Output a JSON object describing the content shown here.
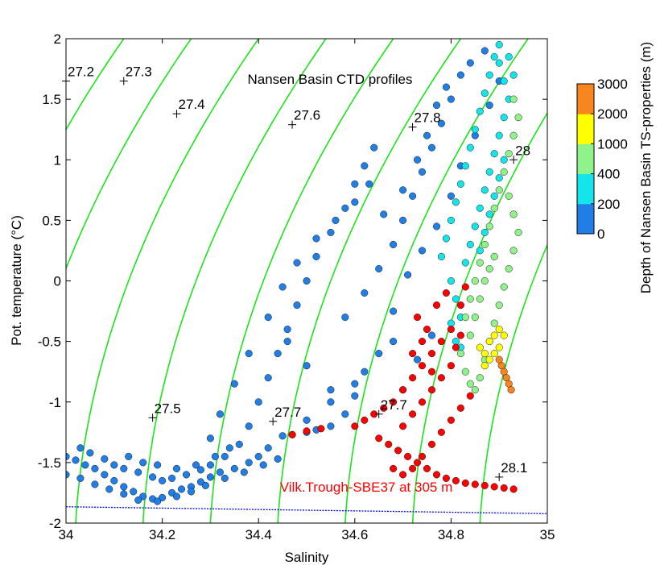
{
  "chart_data": {
    "type": "scatter",
    "title": "Nansen Basin CTD profiles",
    "xlabel": "Salinity",
    "ylabel": "Pot. temperature (°C)",
    "xlim": [
      34,
      35
    ],
    "ylim": [
      -2,
      2
    ],
    "x_ticks": [
      "34",
      "34.2",
      "34.4",
      "34.6",
      "34.8",
      "35"
    ],
    "y_ticks": [
      "-2",
      "-1.5",
      "-1",
      "-0.5",
      "0",
      "0.5",
      "1",
      "1.5",
      "2"
    ],
    "grid": false,
    "colorbar": {
      "label": "Depth of Nansen Basin TS-properties (m)",
      "ticks": [
        "0",
        "200",
        "400",
        "1000",
        "2000",
        "3000"
      ],
      "colors": [
        "#1f7fe6",
        "#13e5ea",
        "#8ff28a",
        "#ffff00",
        "#f7861f"
      ]
    },
    "isopycnals": {
      "color": "#19e619",
      "labels": [
        {
          "text": "27.2",
          "x": 34.0,
          "y": 1.65
        },
        {
          "text": "27.3",
          "x": 34.12,
          "y": 1.65
        },
        {
          "text": "27.4",
          "x": 34.23,
          "y": 1.38
        },
        {
          "text": "27.5",
          "x": 34.18,
          "y": -1.13
        },
        {
          "text": "27.6",
          "x": 34.47,
          "y": 1.29
        },
        {
          "text": "27.7",
          "x": 34.43,
          "y": -1.16
        },
        {
          "text": "27.7",
          "x": 34.65,
          "y": -1.1
        },
        {
          "text": "27.8",
          "x": 34.72,
          "y": 1.27
        },
        {
          "text": "28",
          "x": 34.93,
          "y": 1.0
        },
        {
          "text": "28.1",
          "x": 34.9,
          "y": -1.62
        }
      ]
    },
    "freezing_line": {
      "color": "#0000ff",
      "x": [
        34,
        35
      ],
      "y": [
        -1.865,
        -1.922
      ]
    },
    "annotation": {
      "text": "Vilk.Trough-SBE37 at 305 m",
      "color": "#ff0000",
      "x": 34.8,
      "y": -1.76
    },
    "series": [
      {
        "depth_class": "0-200",
        "color": "#1f7fe6",
        "points": [
          [
            34.0,
            -1.45
          ],
          [
            34.02,
            -1.48
          ],
          [
            34.04,
            -1.52
          ],
          [
            34.06,
            -1.55
          ],
          [
            34.08,
            -1.6
          ],
          [
            34.1,
            -1.65
          ],
          [
            34.12,
            -1.7
          ],
          [
            34.14,
            -1.74
          ],
          [
            34.16,
            -1.78
          ],
          [
            34.18,
            -1.8
          ],
          [
            34.2,
            -1.79
          ],
          [
            34.22,
            -1.75
          ],
          [
            34.24,
            -1.72
          ],
          [
            34.26,
            -1.7
          ],
          [
            34.28,
            -1.66
          ],
          [
            34.3,
            -1.62
          ],
          [
            34.32,
            -1.58
          ],
          [
            34.35,
            -1.55
          ],
          [
            34.38,
            -1.5
          ],
          [
            34.4,
            -1.45
          ],
          [
            34.42,
            -1.38
          ],
          [
            34.45,
            -1.28
          ],
          [
            34.5,
            -1.15
          ],
          [
            34.55,
            -1.0
          ],
          [
            34.6,
            -0.85
          ],
          [
            34.03,
            -1.38
          ],
          [
            34.05,
            -1.42
          ],
          [
            34.08,
            -1.47
          ],
          [
            34.1,
            -1.52
          ],
          [
            34.12,
            -1.55
          ],
          [
            34.15,
            -1.58
          ],
          [
            34.18,
            -1.62
          ],
          [
            34.2,
            -1.65
          ],
          [
            34.22,
            -1.63
          ],
          [
            34.25,
            -1.6
          ],
          [
            34.28,
            -1.56
          ],
          [
            34.3,
            -1.52
          ],
          [
            34.33,
            -1.45
          ],
          [
            34.36,
            -1.35
          ],
          [
            34.38,
            -1.2
          ],
          [
            34.4,
            -1.0
          ],
          [
            34.42,
            -0.8
          ],
          [
            34.44,
            -0.6
          ],
          [
            34.46,
            -0.4
          ],
          [
            34.48,
            -0.2
          ],
          [
            34.5,
            0.0
          ],
          [
            34.52,
            0.2
          ],
          [
            34.55,
            0.4
          ],
          [
            34.58,
            0.6
          ],
          [
            34.6,
            0.8
          ],
          [
            34.62,
            0.95
          ],
          [
            34.64,
            1.1
          ],
          [
            34.3,
            -1.3
          ],
          [
            34.32,
            -1.1
          ],
          [
            34.35,
            -0.85
          ],
          [
            34.38,
            -0.6
          ],
          [
            34.42,
            -0.3
          ],
          [
            34.45,
            -0.05
          ],
          [
            34.48,
            0.15
          ],
          [
            34.52,
            0.35
          ],
          [
            34.56,
            0.5
          ],
          [
            34.6,
            0.65
          ],
          [
            34.63,
            0.8
          ],
          [
            34.46,
            -0.5
          ],
          [
            34.5,
            -0.7
          ],
          [
            34.55,
            -0.9
          ],
          [
            34.58,
            -0.3
          ],
          [
            34.62,
            -0.1
          ],
          [
            34.65,
            0.1
          ],
          [
            34.68,
            0.3
          ],
          [
            34.7,
            0.5
          ],
          [
            34.72,
            0.7
          ],
          [
            34.74,
            0.9
          ],
          [
            34.76,
            1.1
          ],
          [
            34.78,
            1.3
          ],
          [
            34.8,
            1.5
          ],
          [
            34.82,
            1.7
          ],
          [
            34.84,
            1.8
          ],
          [
            34.87,
            1.9
          ],
          [
            34.66,
            0.55
          ],
          [
            34.7,
            0.75
          ],
          [
            34.73,
            1.0
          ],
          [
            34.75,
            1.2
          ],
          [
            34.77,
            1.45
          ],
          [
            34.79,
            1.6
          ],
          [
            34.47,
            -1.27
          ],
          [
            34.5,
            -1.25
          ],
          [
            34.52,
            -1.23
          ],
          [
            34.55,
            -1.2
          ],
          [
            34.58,
            -1.1
          ],
          [
            34.6,
            -0.95
          ],
          [
            34.62,
            -0.75
          ],
          [
            34.65,
            -0.6
          ],
          [
            34.68,
            -0.5
          ],
          [
            34.13,
            -1.45
          ],
          [
            34.16,
            -1.5
          ],
          [
            34.19,
            -1.52
          ],
          [
            34.23,
            -1.55
          ],
          [
            34.27,
            -1.52
          ],
          [
            34.31,
            -1.45
          ],
          [
            34.34,
            -1.38
          ],
          [
            34.0,
            -1.6
          ],
          [
            34.03,
            -1.63
          ],
          [
            34.06,
            -1.68
          ],
          [
            34.09,
            -1.72
          ],
          [
            34.12,
            -1.76
          ],
          [
            34.15,
            -1.81
          ],
          [
            34.19,
            -1.82
          ],
          [
            34.23,
            -1.78
          ],
          [
            34.26,
            -1.74
          ],
          [
            34.29,
            -1.69
          ],
          [
            34.33,
            -1.63
          ],
          [
            34.37,
            -1.58
          ],
          [
            34.41,
            -1.52
          ],
          [
            34.44,
            -1.47
          ],
          [
            34.7,
            -0.9
          ],
          [
            34.73,
            -0.65
          ],
          [
            34.76,
            -0.45
          ],
          [
            34.68,
            -0.25
          ],
          [
            34.71,
            0.05
          ],
          [
            34.74,
            0.25
          ],
          [
            34.77,
            0.45
          ],
          [
            34.8,
            0.7
          ],
          [
            34.82,
            0.95
          ],
          [
            34.85,
            1.2
          ],
          [
            34.88,
            1.45
          ],
          [
            34.9,
            1.65
          ]
        ]
      },
      {
        "depth_class": "200-400",
        "color": "#13e5ea",
        "points": [
          [
            34.78,
            0.2
          ],
          [
            34.79,
            0.35
          ],
          [
            34.8,
            0.5
          ],
          [
            34.81,
            0.65
          ],
          [
            34.82,
            0.8
          ],
          [
            34.83,
            0.95
          ],
          [
            34.84,
            1.1
          ],
          [
            34.85,
            1.25
          ],
          [
            34.86,
            1.4
          ],
          [
            34.87,
            1.55
          ],
          [
            34.88,
            1.7
          ],
          [
            34.89,
            1.85
          ],
          [
            34.9,
            1.95
          ],
          [
            34.92,
            1.85
          ],
          [
            34.93,
            1.7
          ],
          [
            34.8,
            0.0
          ],
          [
            34.81,
            -0.15
          ],
          [
            34.82,
            -0.3
          ],
          [
            34.83,
            0.15
          ],
          [
            34.84,
            0.3
          ],
          [
            34.85,
            0.45
          ],
          [
            34.86,
            0.6
          ],
          [
            34.87,
            0.75
          ],
          [
            34.88,
            0.9
          ],
          [
            34.89,
            1.05
          ],
          [
            34.9,
            1.2
          ],
          [
            34.91,
            1.35
          ],
          [
            34.92,
            1.5
          ],
          [
            34.91,
            1.65
          ],
          [
            34.9,
            1.8
          ],
          [
            34.8,
            -0.35
          ],
          [
            34.81,
            -0.5
          ],
          [
            34.82,
            -0.55
          ],
          [
            34.86,
            0.25
          ],
          [
            34.87,
            0.4
          ],
          [
            34.88,
            0.55
          ],
          [
            34.89,
            0.7
          ],
          [
            34.9,
            0.85
          ],
          [
            34.91,
            1.0
          ]
        ]
      },
      {
        "depth_class": "400-1000",
        "color": "#8ff28a",
        "points": [
          [
            34.83,
            -0.3
          ],
          [
            34.84,
            -0.15
          ],
          [
            34.85,
            0.0
          ],
          [
            34.86,
            0.15
          ],
          [
            34.87,
            0.3
          ],
          [
            34.88,
            0.45
          ],
          [
            34.89,
            0.6
          ],
          [
            34.9,
            0.75
          ],
          [
            34.91,
            0.9
          ],
          [
            34.92,
            1.05
          ],
          [
            34.93,
            1.2
          ],
          [
            34.94,
            1.35
          ],
          [
            34.93,
            1.5
          ],
          [
            34.82,
            -0.6
          ],
          [
            34.83,
            -0.75
          ],
          [
            34.84,
            -0.85
          ],
          [
            34.85,
            -0.9
          ],
          [
            34.86,
            -0.8
          ],
          [
            34.87,
            -0.65
          ],
          [
            34.88,
            -0.5
          ],
          [
            34.89,
            -0.35
          ],
          [
            34.9,
            -0.2
          ],
          [
            34.91,
            -0.05
          ],
          [
            34.92,
            0.1
          ],
          [
            34.93,
            0.25
          ],
          [
            34.94,
            0.4
          ],
          [
            34.93,
            0.55
          ],
          [
            34.92,
            0.7
          ],
          [
            34.84,
            -0.45
          ],
          [
            34.85,
            -0.3
          ],
          [
            34.86,
            -0.15
          ],
          [
            34.87,
            0.0
          ],
          [
            34.88,
            0.1
          ],
          [
            34.89,
            0.2
          ]
        ]
      },
      {
        "depth_class": "1000-2000",
        "color": "#ffff00",
        "points": [
          [
            34.86,
            -0.55
          ],
          [
            34.87,
            -0.6
          ],
          [
            34.88,
            -0.5
          ],
          [
            34.89,
            -0.45
          ],
          [
            34.9,
            -0.4
          ],
          [
            34.91,
            -0.45
          ],
          [
            34.9,
            -0.55
          ],
          [
            34.89,
            -0.6
          ],
          [
            34.88,
            -0.65
          ],
          [
            34.87,
            -0.7
          ]
        ]
      },
      {
        "depth_class": "2000-3000",
        "color": "#f7861f",
        "points": [
          [
            34.9,
            -0.65
          ],
          [
            34.905,
            -0.7
          ],
          [
            34.91,
            -0.75
          ],
          [
            34.915,
            -0.8
          ],
          [
            34.92,
            -0.85
          ],
          [
            34.925,
            -0.9
          ]
        ]
      },
      {
        "name": "Vilk.Trough-SBE37 at 305 m",
        "color": "#ff0000",
        "points": [
          [
            34.47,
            -1.27
          ],
          [
            34.5,
            -1.24
          ],
          [
            34.53,
            -1.22
          ],
          [
            34.6,
            -1.2
          ],
          [
            34.62,
            -1.15
          ],
          [
            34.64,
            -1.1
          ],
          [
            34.66,
            -1.05
          ],
          [
            34.68,
            -1.0
          ],
          [
            34.7,
            -0.9
          ],
          [
            34.72,
            -0.8
          ],
          [
            34.74,
            -0.7
          ],
          [
            34.76,
            -0.6
          ],
          [
            34.78,
            -0.5
          ],
          [
            34.8,
            -0.4
          ],
          [
            34.82,
            -0.2
          ],
          [
            34.83,
            -0.05
          ],
          [
            34.65,
            -1.3
          ],
          [
            34.67,
            -1.35
          ],
          [
            34.69,
            -1.4
          ],
          [
            34.71,
            -1.45
          ],
          [
            34.73,
            -1.5
          ],
          [
            34.75,
            -1.55
          ],
          [
            34.77,
            -1.6
          ],
          [
            34.79,
            -1.63
          ],
          [
            34.81,
            -1.65
          ],
          [
            34.83,
            -1.67
          ],
          [
            34.85,
            -1.68
          ],
          [
            34.87,
            -1.69
          ],
          [
            34.89,
            -1.7
          ],
          [
            34.91,
            -1.71
          ],
          [
            34.93,
            -1.72
          ],
          [
            34.7,
            -1.2
          ],
          [
            34.72,
            -1.1
          ],
          [
            34.74,
            -1.0
          ],
          [
            34.76,
            -0.9
          ],
          [
            34.78,
            -0.8
          ],
          [
            34.8,
            -0.7
          ],
          [
            34.81,
            -0.55
          ],
          [
            34.82,
            -0.45
          ],
          [
            34.68,
            -1.55
          ],
          [
            34.7,
            -1.6
          ],
          [
            34.72,
            -1.55
          ],
          [
            34.74,
            -1.45
          ],
          [
            34.76,
            -1.35
          ],
          [
            34.78,
            -1.25
          ],
          [
            34.8,
            -1.15
          ],
          [
            34.82,
            -1.05
          ],
          [
            34.84,
            -0.95
          ],
          [
            34.73,
            -0.3
          ],
          [
            34.75,
            -0.4
          ],
          [
            34.77,
            -0.2
          ],
          [
            34.79,
            -0.1
          ],
          [
            34.72,
            -0.6
          ],
          [
            34.74,
            -0.5
          ],
          [
            34.76,
            -0.75
          ]
        ]
      }
    ]
  }
}
